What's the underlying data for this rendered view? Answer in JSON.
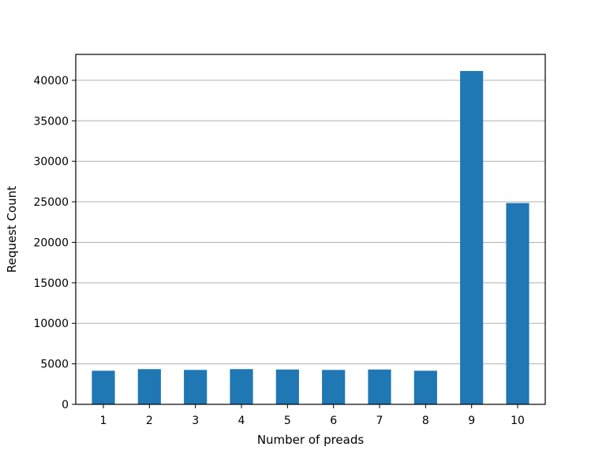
{
  "chart_data": {
    "type": "bar",
    "title": "",
    "xlabel": "Number of preads",
    "ylabel": "Request Count",
    "categories": [
      "1",
      "2",
      "3",
      "4",
      "5",
      "6",
      "7",
      "8",
      "9",
      "10"
    ],
    "values": [
      4150,
      4350,
      4250,
      4350,
      4300,
      4250,
      4300,
      4150,
      41150,
      24850
    ],
    "ylim": [
      0,
      43200
    ],
    "yticks": [
      0,
      5000,
      10000,
      15000,
      20000,
      25000,
      30000,
      35000,
      40000
    ],
    "ytick_labels": [
      "0",
      "5000",
      "10000",
      "15000",
      "20000",
      "25000",
      "30000",
      "35000",
      "40000"
    ],
    "grid": "y-axis",
    "legend": "none",
    "colors": {
      "bar": "#1f77b4",
      "grid": "#b0b0b0",
      "axis": "#000000"
    }
  }
}
